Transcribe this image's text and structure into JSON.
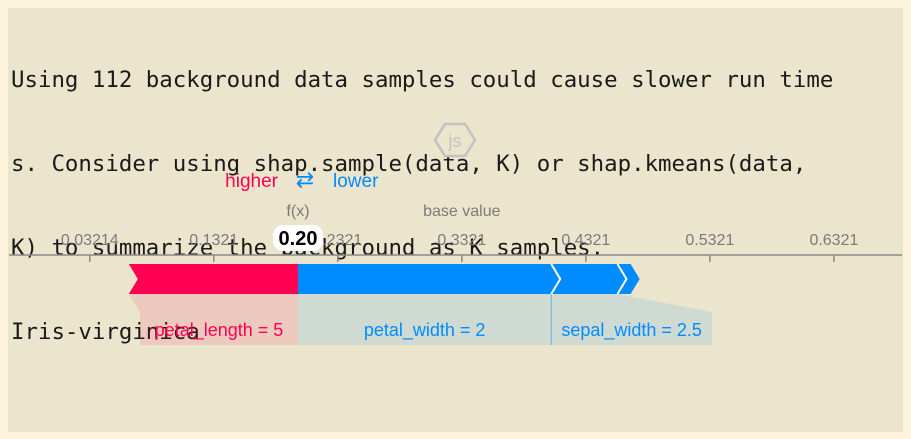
{
  "output": {
    "warning_lines": [
      "Using 112 background data samples could cause slower run time",
      "s. Consider using shap.sample(data, K) or shap.kmeans(data,",
      "K) to summarize the background as K samples."
    ],
    "class_label": "Iris-virginica"
  },
  "chart_data": {
    "type": "force",
    "logo_text": "js",
    "legend": {
      "higher": "higher",
      "lower": "lower",
      "arrow": "⇄"
    },
    "fx_label": "f(x)",
    "fx_value": 0.2,
    "fx_display": "0.20",
    "base_value_label": "base value",
    "base_value": 0.3321,
    "ticks": [
      "0.03214",
      "0.1321",
      "0.2321",
      "0.3321",
      "0.4321",
      "0.5321",
      "0.6321"
    ],
    "tick_values": [
      0.03214,
      0.1321,
      0.2321,
      0.3321,
      0.4321,
      0.5321,
      0.6321
    ],
    "xlim": [
      -0.033,
      0.687
    ],
    "features": [
      {
        "label": "petal_length = 5",
        "effect": "higher",
        "start": 0.2,
        "end": 0.0636
      },
      {
        "label": "petal_width = 2",
        "effect": "lower",
        "start": 0.2,
        "end": 0.4042
      },
      {
        "label": "sepal_width = 2.5",
        "effect": "lower",
        "start": 0.4042,
        "end": 0.4576
      },
      {
        "label": "",
        "effect": "lower",
        "start": 0.4576,
        "end": 0.4682
      }
    ],
    "colors": {
      "higher": "#ff0052",
      "lower": "#008bff",
      "axis": "#8a8a8a",
      "tick_text": "#7a7a7a"
    }
  }
}
